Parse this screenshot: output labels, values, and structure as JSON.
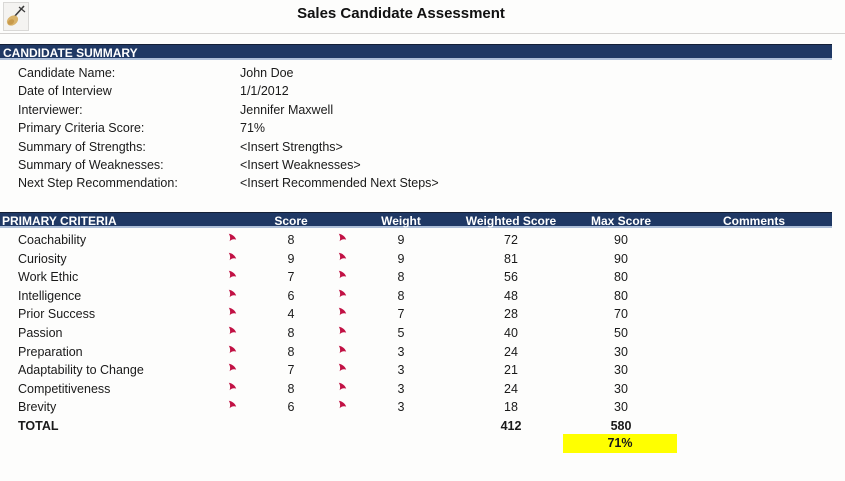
{
  "window": {
    "title": "Sales Candidate Assessment"
  },
  "icons": {
    "toolbar_icon": "paintbrush"
  },
  "colors": {
    "section_bar": "#1F3864",
    "section_bar_text": "#FFFFFF",
    "highlight": "#FFFF00",
    "comment_marker": "#C11144"
  },
  "summary": {
    "section_title": "CANDIDATE SUMMARY",
    "fields": [
      {
        "label": "Candidate Name:",
        "value": "John Doe"
      },
      {
        "label": "Date of Interview",
        "value": "1/1/2012"
      },
      {
        "label": "Interviewer:",
        "value": "Jennifer Maxwell"
      },
      {
        "label": "Primary Criteria Score:",
        "value": "71%"
      },
      {
        "label": "Summary of Strengths:",
        "value": "<Insert Strengths>"
      },
      {
        "label": "Summary of Weaknesses:",
        "value": "<Insert Weaknesses>"
      },
      {
        "label": "Next Step Recommendation:",
        "value": "<Insert Recommended Next Steps>"
      }
    ]
  },
  "criteria": {
    "section_title": "PRIMARY CRITERIA",
    "columns": [
      "Score",
      "Weight",
      "Weighted Score",
      "Max Score",
      "Comments"
    ],
    "rows": [
      {
        "name": "Coachability",
        "score": 8,
        "weight": 9,
        "weighted": 72,
        "max": 90
      },
      {
        "name": "Curiosity",
        "score": 9,
        "weight": 9,
        "weighted": 81,
        "max": 90
      },
      {
        "name": "Work Ethic",
        "score": 7,
        "weight": 8,
        "weighted": 56,
        "max": 80
      },
      {
        "name": "Intelligence",
        "score": 6,
        "weight": 8,
        "weighted": 48,
        "max": 80
      },
      {
        "name": "Prior Success",
        "score": 4,
        "weight": 7,
        "weighted": 28,
        "max": 70
      },
      {
        "name": "Passion",
        "score": 8,
        "weight": 5,
        "weighted": 40,
        "max": 50
      },
      {
        "name": "Preparation",
        "score": 8,
        "weight": 3,
        "weighted": 24,
        "max": 30
      },
      {
        "name": "Adaptability to Change",
        "score": 7,
        "weight": 3,
        "weighted": 21,
        "max": 30
      },
      {
        "name": "Competitiveness",
        "score": 8,
        "weight": 3,
        "weighted": 24,
        "max": 30
      },
      {
        "name": "Brevity",
        "score": 6,
        "weight": 3,
        "weighted": 18,
        "max": 30
      }
    ],
    "total": {
      "label": "TOTAL",
      "weighted": 412,
      "max": 580
    },
    "overall_percent": "71%"
  }
}
